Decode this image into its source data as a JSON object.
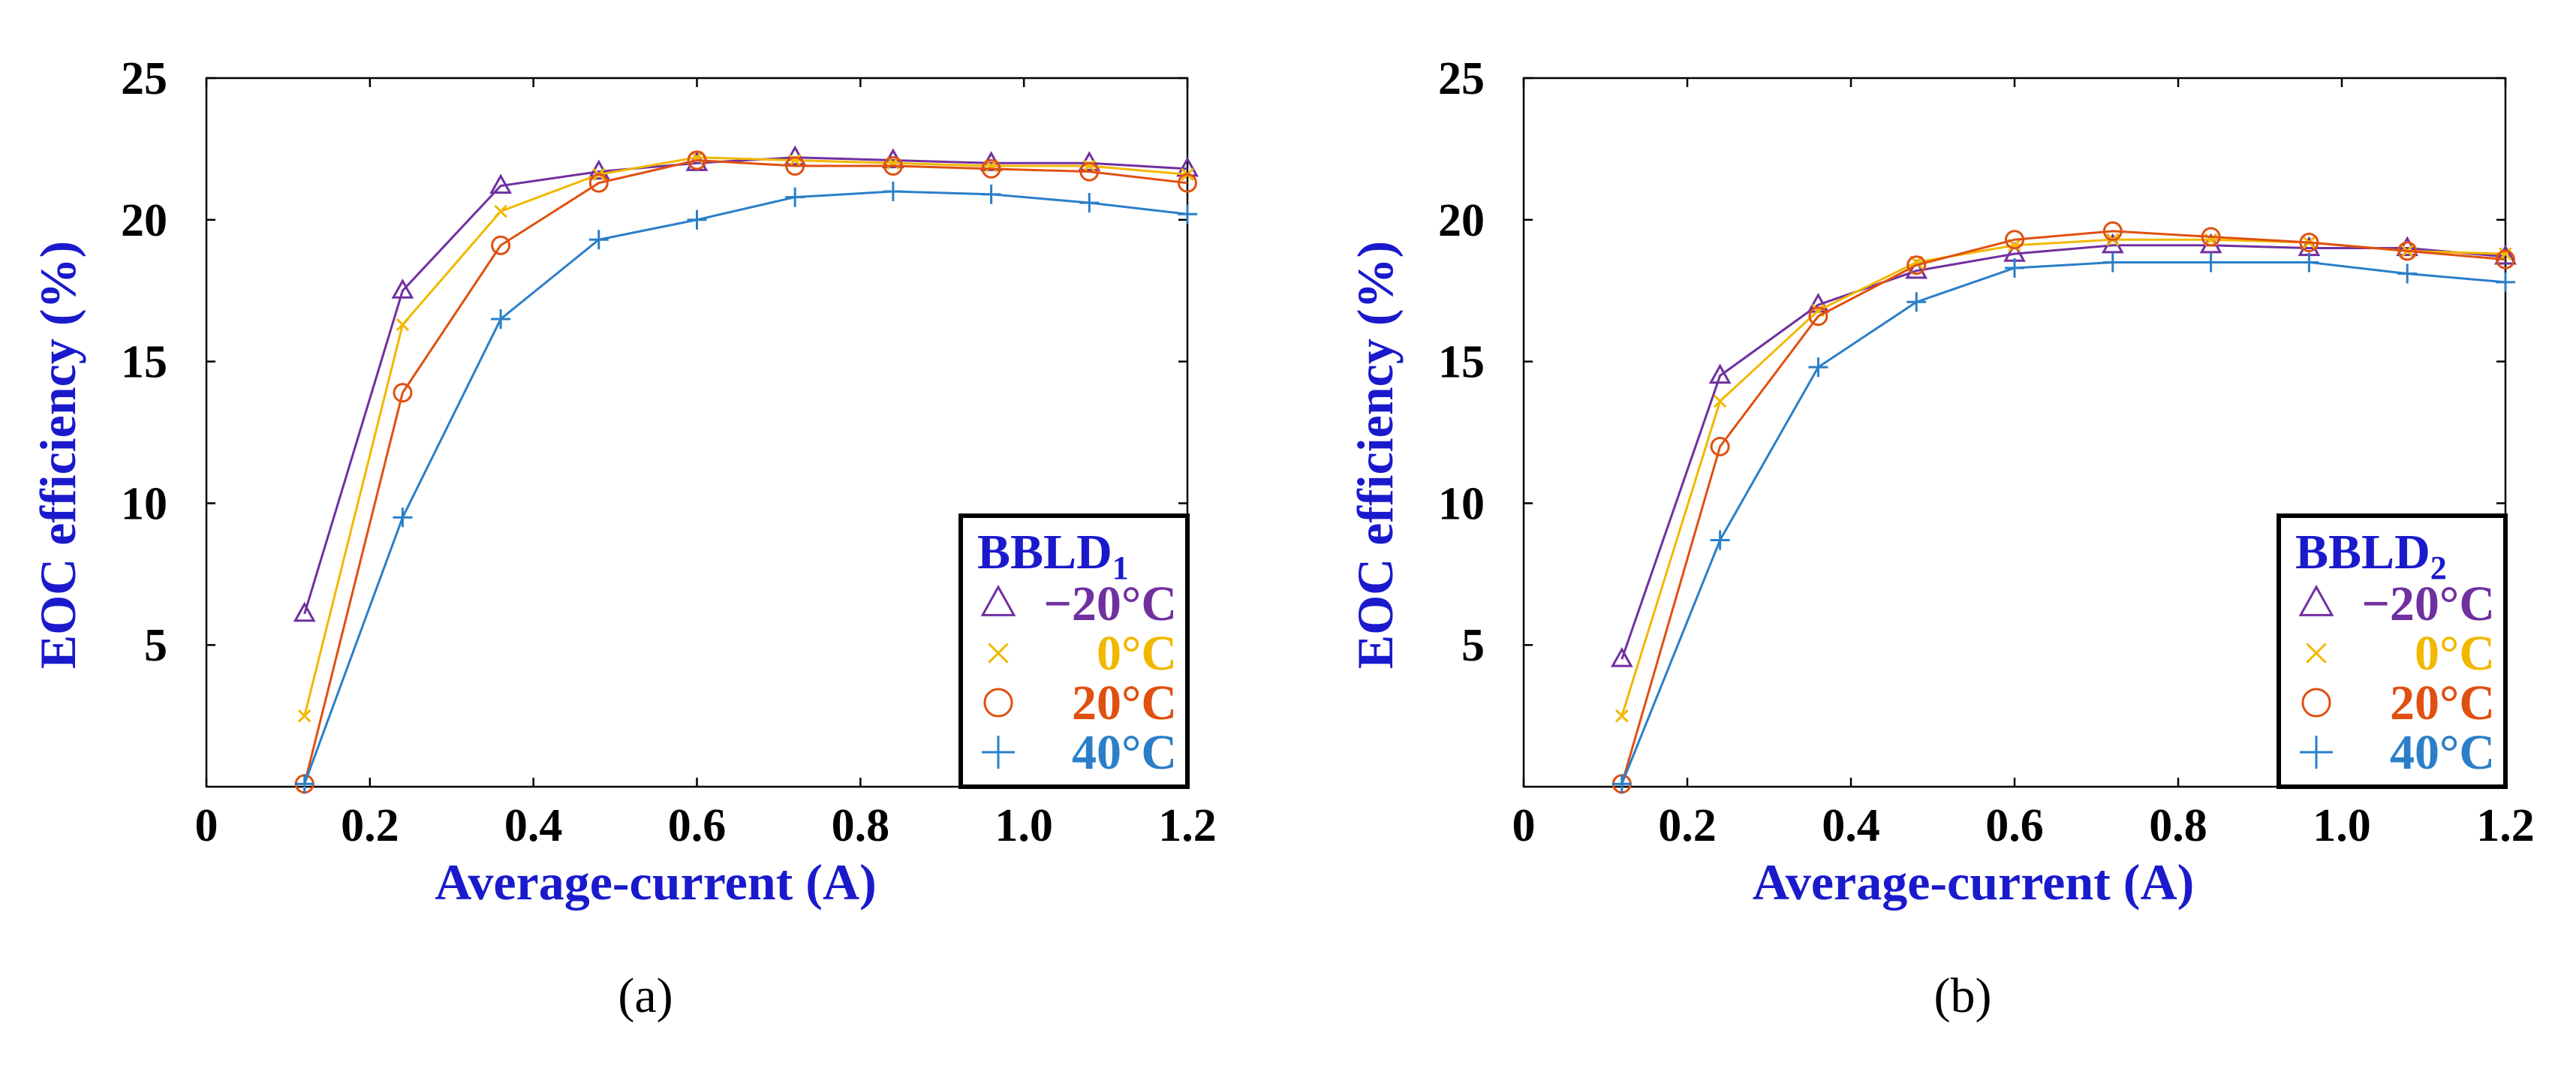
{
  "colors": {
    "label_blue": "#1a1acc",
    "m20": "#7030a0",
    "p0": "#f2b800",
    "p20": "#e05010",
    "p40": "#2a7fc8"
  },
  "chart_data": [
    {
      "type": "line",
      "caption": "(a)",
      "legend_title": "BBLD",
      "legend_subscript": "1",
      "xlabel": "Average-current (A)",
      "ylabel": "EOC efficiency (%)",
      "xlim": [
        0,
        1.2
      ],
      "ylim": [
        0,
        25
      ],
      "xticks": [
        0,
        0.2,
        0.4,
        0.6,
        0.8,
        1.0,
        1.2
      ],
      "xtick_labels": [
        "0",
        "0.2",
        "0.4",
        "0.6",
        "0.8",
        "1.0",
        "1.2"
      ],
      "yticks": [
        5,
        10,
        15,
        20,
        25
      ],
      "ytick_labels": [
        "5",
        "10",
        "15",
        "20",
        "25"
      ],
      "x": [
        0.12,
        0.24,
        0.36,
        0.48,
        0.6,
        0.72,
        0.84,
        0.96,
        1.08,
        1.2
      ],
      "series": [
        {
          "name": "−20°C",
          "marker": "triangle",
          "color_key": "m20",
          "values": [
            6.1,
            17.5,
            21.2,
            21.7,
            22.0,
            22.2,
            22.1,
            22.0,
            22.0,
            21.8
          ]
        },
        {
          "name": "0°C",
          "marker": "x",
          "color_key": "p0",
          "values": [
            2.5,
            16.3,
            20.3,
            21.6,
            22.2,
            22.1,
            22.0,
            21.9,
            21.9,
            21.6
          ]
        },
        {
          "name": "20°C",
          "marker": "circle",
          "color_key": "p20",
          "values": [
            0.1,
            13.9,
            19.1,
            21.3,
            22.1,
            21.9,
            21.9,
            21.8,
            21.7,
            21.3
          ]
        },
        {
          "name": "40°C",
          "marker": "plus",
          "color_key": "p40",
          "values": [
            0.1,
            9.5,
            16.5,
            19.3,
            20.0,
            20.8,
            21.0,
            20.9,
            20.6,
            20.2
          ]
        }
      ]
    },
    {
      "type": "line",
      "caption": "(b)",
      "legend_title": "BBLD",
      "legend_subscript": "2",
      "xlabel": "Average-current (A)",
      "ylabel": "EOC efficiency (%)",
      "xlim": [
        0,
        1.2
      ],
      "ylim": [
        0,
        25
      ],
      "xticks": [
        0,
        0.2,
        0.4,
        0.6,
        0.8,
        1.0,
        1.2
      ],
      "xtick_labels": [
        "0",
        "0.2",
        "0.4",
        "0.6",
        "0.8",
        "1.0",
        "1.2"
      ],
      "yticks": [
        5,
        10,
        15,
        20,
        25
      ],
      "ytick_labels": [
        "5",
        "10",
        "15",
        "20",
        "25"
      ],
      "x": [
        0.12,
        0.24,
        0.36,
        0.48,
        0.6,
        0.72,
        0.84,
        0.96,
        1.08,
        1.2
      ],
      "series": [
        {
          "name": "−20°C",
          "marker": "triangle",
          "color_key": "m20",
          "values": [
            4.5,
            14.5,
            17.0,
            18.2,
            18.8,
            19.1,
            19.1,
            19.0,
            19.0,
            18.7
          ]
        },
        {
          "name": "0°C",
          "marker": "x",
          "color_key": "p0",
          "values": [
            2.5,
            13.6,
            16.8,
            18.5,
            19.1,
            19.3,
            19.3,
            19.2,
            18.9,
            18.8
          ]
        },
        {
          "name": "20°C",
          "marker": "circle",
          "color_key": "p20",
          "values": [
            0.1,
            12.0,
            16.6,
            18.4,
            19.3,
            19.6,
            19.4,
            19.2,
            18.9,
            18.6
          ]
        },
        {
          "name": "40°C",
          "marker": "plus",
          "color_key": "p40",
          "values": [
            0.1,
            8.7,
            14.8,
            17.1,
            18.3,
            18.5,
            18.5,
            18.5,
            18.1,
            17.8
          ]
        }
      ]
    }
  ]
}
